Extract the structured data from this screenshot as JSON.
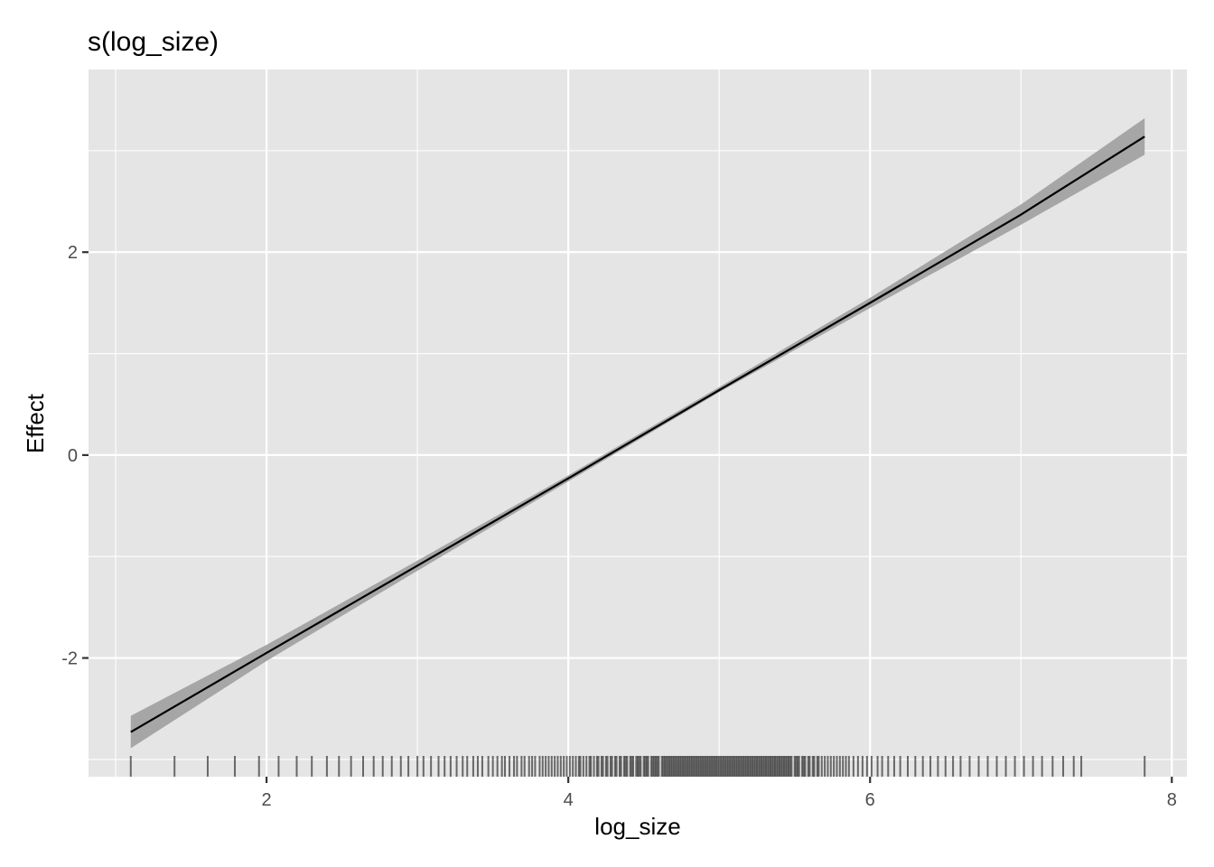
{
  "chart_data": {
    "type": "line",
    "title": "s(log_size)",
    "xlabel": "log_size",
    "ylabel": "Effect",
    "xlim": [
      0.82,
      8.1
    ],
    "ylim": [
      -3.17,
      3.8
    ],
    "x_ticks": [
      2,
      4,
      6,
      8
    ],
    "y_ticks": [
      -2,
      0,
      2
    ],
    "x_tick_labels": [
      "2",
      "4",
      "6",
      "8"
    ],
    "y_tick_labels": [
      "-2",
      "0",
      "2"
    ],
    "grid": true,
    "legend": "none",
    "colors": {
      "panel_bg": "#e5e5e5",
      "grid_major": "#ffffff",
      "line": "#000000",
      "ribbon": "#a6a6a6",
      "rug": "#000000",
      "tick_text": "#4d4d4d"
    },
    "series": [
      {
        "x": [
          1.1,
          2.0,
          3.0,
          4.0,
          5.0,
          6.0,
          7.0,
          7.82
        ],
        "y": [
          -2.73,
          -1.95,
          -1.09,
          -0.23,
          0.64,
          1.5,
          2.37,
          3.14
        ],
        "lower": [
          -2.89,
          -2.03,
          -1.14,
          -0.26,
          0.62,
          1.45,
          2.27,
          2.96
        ],
        "upper": [
          -2.57,
          -1.87,
          -1.04,
          -0.2,
          0.67,
          1.55,
          2.47,
          3.32
        ]
      }
    ],
    "rug": [
      1.1,
      1.39,
      1.61,
      1.79,
      1.95,
      2.08,
      2.2,
      2.3,
      2.4,
      2.48,
      2.56,
      2.64,
      2.71,
      2.77,
      2.83,
      2.89,
      2.94,
      3.0,
      3.04,
      3.09,
      3.14,
      3.18,
      3.22,
      3.26,
      3.3,
      3.33,
      3.37,
      3.4,
      3.43,
      3.47,
      3.5,
      3.53,
      3.56,
      3.58,
      3.61,
      3.64,
      3.66,
      3.69,
      3.71,
      3.74,
      3.76,
      3.78,
      3.81,
      3.83,
      3.85,
      3.87,
      3.89,
      3.91,
      3.93,
      3.95,
      3.97,
      3.99,
      4.01,
      4.03,
      4.05,
      4.07,
      4.08,
      4.1,
      4.12,
      4.14,
      4.15,
      4.17,
      4.19,
      4.2,
      4.22,
      4.23,
      4.25,
      4.26,
      4.28,
      4.29,
      4.31,
      4.32,
      4.34,
      4.35,
      4.37,
      4.38,
      4.39,
      4.41,
      4.42,
      4.43,
      4.45,
      4.46,
      4.47,
      4.48,
      4.5,
      4.51,
      4.52,
      4.53,
      4.55,
      4.56,
      4.57,
      4.58,
      4.59,
      4.6,
      4.62,
      4.63,
      4.64,
      4.65,
      4.66,
      4.67,
      4.68,
      4.69,
      4.7,
      4.71,
      4.72,
      4.73,
      4.74,
      4.75,
      4.76,
      4.77,
      4.78,
      4.79,
      4.8,
      4.81,
      4.82,
      4.83,
      4.84,
      4.85,
      4.86,
      4.87,
      4.88,
      4.89,
      4.9,
      4.91,
      4.92,
      4.93,
      4.94,
      4.95,
      4.96,
      4.97,
      4.98,
      4.99,
      5.0,
      5.01,
      5.02,
      5.03,
      5.04,
      5.05,
      5.06,
      5.07,
      5.08,
      5.09,
      5.1,
      5.11,
      5.12,
      5.13,
      5.14,
      5.15,
      5.16,
      5.17,
      5.18,
      5.19,
      5.2,
      5.21,
      5.22,
      5.23,
      5.24,
      5.25,
      5.26,
      5.27,
      5.28,
      5.29,
      5.3,
      5.31,
      5.32,
      5.33,
      5.34,
      5.35,
      5.36,
      5.37,
      5.38,
      5.39,
      5.4,
      5.41,
      5.42,
      5.43,
      5.44,
      5.45,
      5.46,
      5.47,
      5.48,
      5.5,
      5.51,
      5.52,
      5.53,
      5.55,
      5.56,
      5.57,
      5.59,
      5.6,
      5.62,
      5.63,
      5.65,
      5.66,
      5.68,
      5.7,
      5.72,
      5.74,
      5.76,
      5.78,
      5.8,
      5.82,
      5.84,
      5.86,
      5.89,
      5.92,
      5.95,
      5.98,
      6.01,
      6.05,
      6.08,
      6.12,
      6.16,
      6.2,
      6.25,
      6.3,
      6.35,
      6.4,
      6.45,
      6.5,
      6.55,
      6.6,
      6.66,
      6.72,
      6.78,
      6.84,
      6.9,
      6.96,
      7.02,
      7.08,
      7.14,
      7.21,
      7.28,
      7.35,
      7.4,
      7.82
    ]
  }
}
